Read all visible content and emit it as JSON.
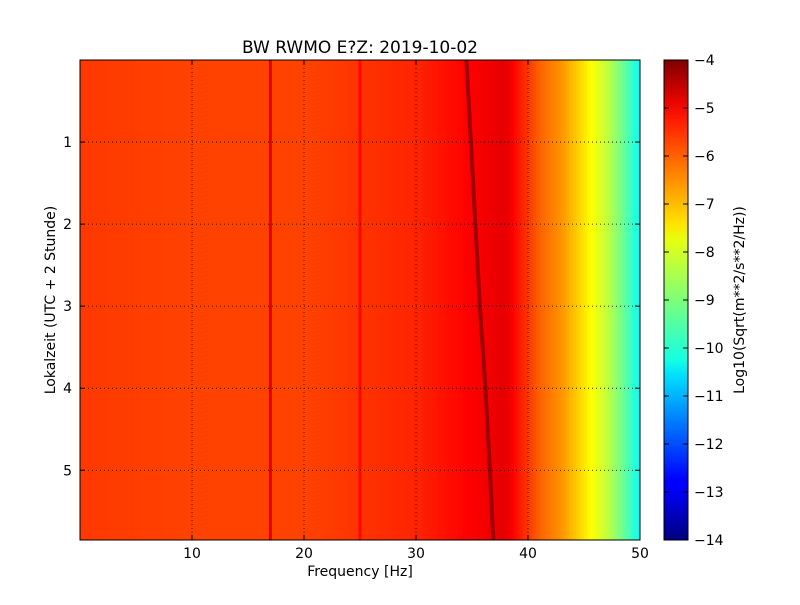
{
  "chart_data": {
    "type": "heatmap",
    "title": "BW RWMO E?Z: 2019-10-02",
    "xlabel": "Frequency [Hz]",
    "ylabel": "Lokalzeit (UTC + 2 Stunde)",
    "colorbar_label": "Log10(Sqrt(m**2/s**2/Hz))",
    "xlim": [
      0,
      50
    ],
    "ylim": [
      5.85,
      0
    ],
    "x_ticks": [
      10,
      20,
      30,
      40,
      50
    ],
    "x_tick_labels": [
      "10",
      "20",
      "30",
      "40",
      "50"
    ],
    "y_ticks": [
      1,
      2,
      3,
      4,
      5
    ],
    "y_tick_labels": [
      "1",
      "2",
      "3",
      "4",
      "5"
    ],
    "color_range": [
      -14,
      -4
    ],
    "colorbar_ticks": [
      -4,
      -5,
      -6,
      -7,
      -8,
      -9,
      -10,
      -11,
      -12,
      -13,
      -14
    ],
    "colorbar_tick_labels": [
      "−4",
      "−5",
      "−6",
      "−7",
      "−8",
      "−9",
      "−10",
      "−11",
      "−12",
      "−13",
      "−14"
    ],
    "colormap": "jet",
    "grid": true,
    "frequency_profile": [
      {
        "f": 0,
        "v": -5.8
      },
      {
        "f": 10,
        "v": -5.9
      },
      {
        "f": 20,
        "v": -5.9
      },
      {
        "f": 30,
        "v": -5.6
      },
      {
        "f": 34,
        "v": -5.3
      },
      {
        "f": 38,
        "v": -5.0
      },
      {
        "f": 39.5,
        "v": -5.6
      },
      {
        "f": 41,
        "v": -6.2
      },
      {
        "f": 43,
        "v": -6.7
      },
      {
        "f": 45,
        "v": -7.5
      },
      {
        "f": 47,
        "v": -8.3
      },
      {
        "f": 48.5,
        "v": -9.2
      },
      {
        "f": 50,
        "v": -10.2
      }
    ],
    "drifting_line": {
      "times": [
        0,
        1,
        2,
        3,
        4,
        5,
        5.85
      ],
      "frequencies": [
        34.5,
        34.9,
        35.3,
        35.7,
        36.2,
        36.6,
        36.9
      ],
      "value": -4.3
    },
    "persistent_lines": [
      {
        "f": 17.0,
        "value": -5.0
      },
      {
        "f": 25.0,
        "value": -5.3
      }
    ]
  }
}
